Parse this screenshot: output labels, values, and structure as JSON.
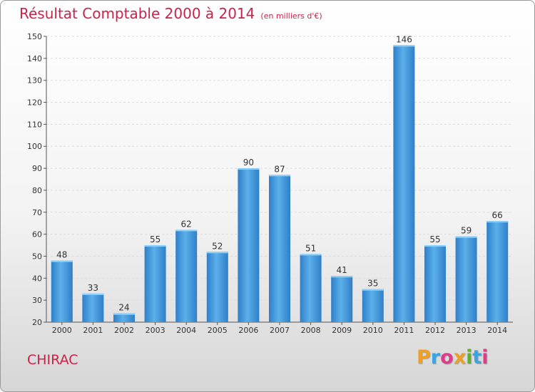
{
  "title": "Résultat Comptable 2000 à 2014",
  "subtitle": "(en milliers d'€)",
  "commune": "CHIRAC",
  "logo": {
    "letters": [
      "P",
      "r",
      "o",
      "x",
      "i",
      "t",
      "i"
    ],
    "colors": [
      "#f0a020",
      "#3aa3e0",
      "#e03a8a",
      "#f0a020",
      "#60b030",
      "#3aa3e0",
      "#e03a8a"
    ]
  },
  "chart_data": {
    "type": "bar",
    "categories": [
      "2000",
      "2001",
      "2002",
      "2003",
      "2004",
      "2005",
      "2006",
      "2007",
      "2008",
      "2009",
      "2010",
      "2011",
      "2012",
      "2013",
      "2014"
    ],
    "values": [
      48,
      33,
      24,
      55,
      62,
      52,
      90,
      87,
      51,
      41,
      35,
      146,
      55,
      59,
      66
    ],
    "ylim": [
      20,
      150
    ],
    "yticks": [
      20,
      30,
      40,
      50,
      60,
      70,
      80,
      90,
      100,
      110,
      120,
      130,
      140,
      150
    ],
    "grid": true,
    "bar_color": "#3a8fd6"
  }
}
